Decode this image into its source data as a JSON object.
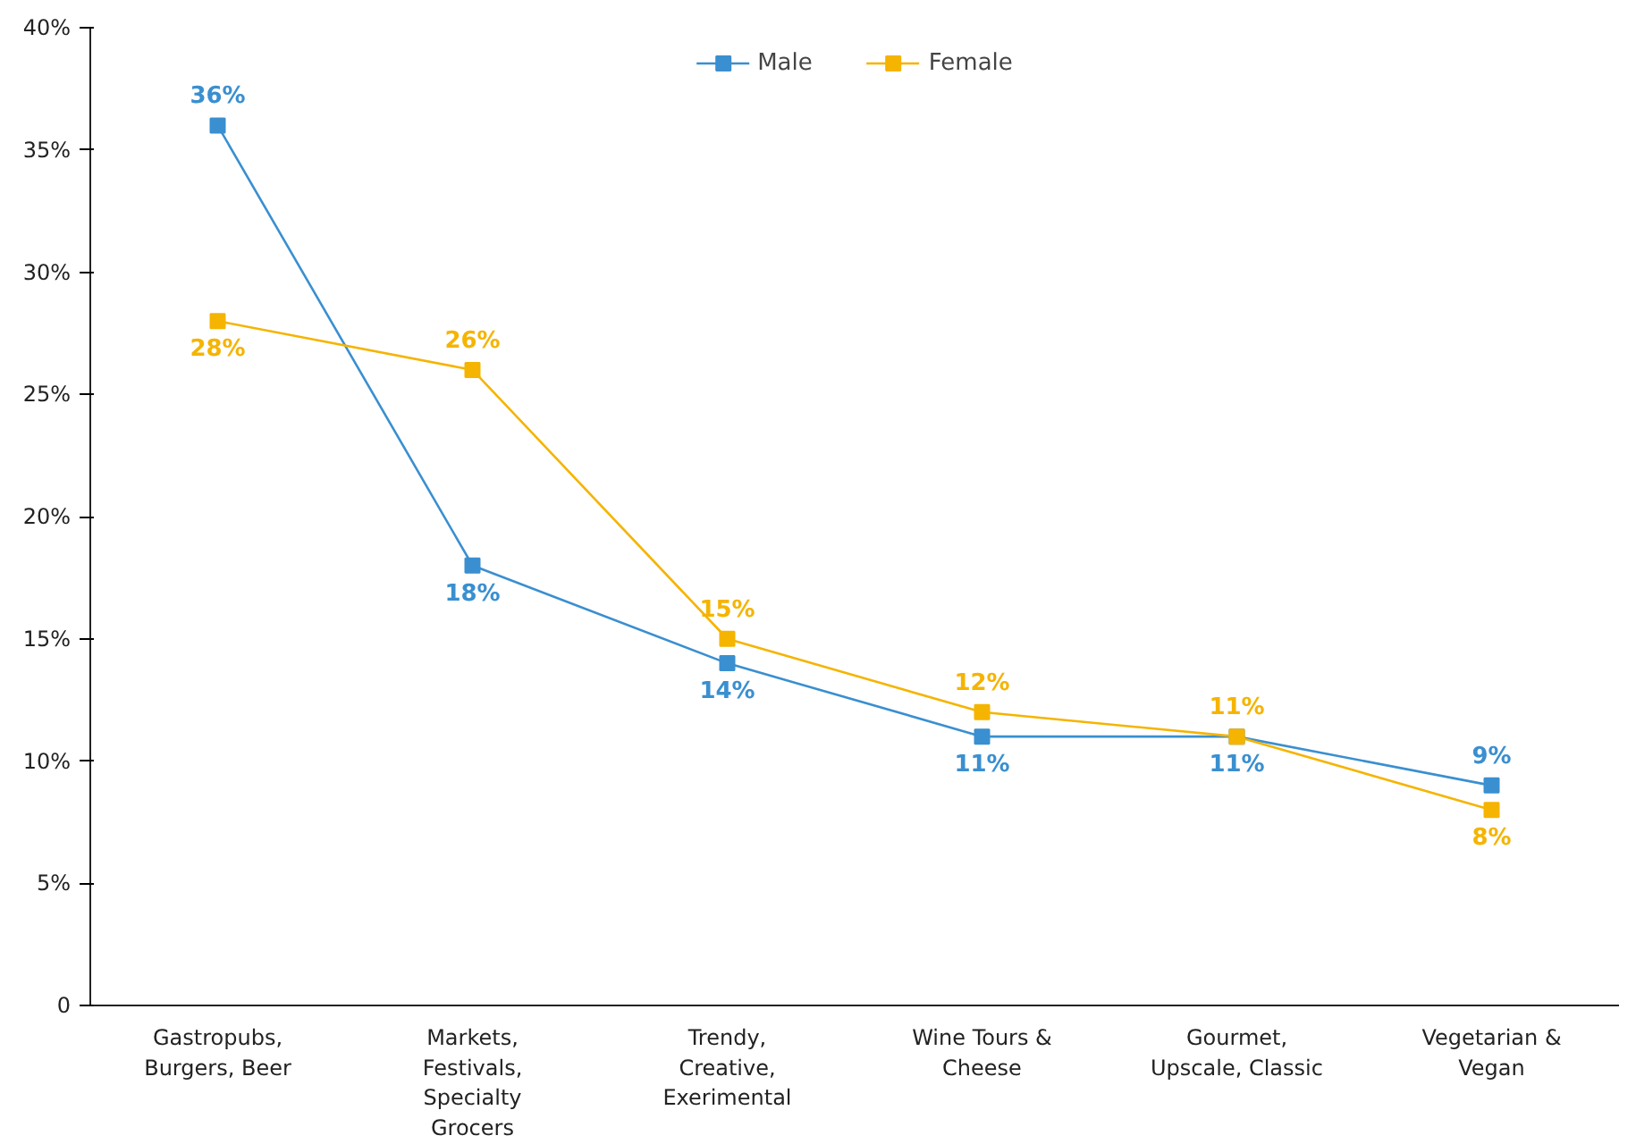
{
  "chart_data": {
    "type": "line",
    "categories": [
      "Gastropubs,\nBurgers, Beer",
      "Markets,\nFestivals,\nSpecialty\nGrocers",
      "Trendy,\nCreative,\nExerimental",
      "Wine Tours &\nCheese",
      "Gourmet,\nUpscale, Classic",
      "Vegetarian &\nVegan"
    ],
    "series": [
      {
        "name": "Male",
        "color": "#3a8fd0",
        "values": [
          36,
          18,
          14,
          11,
          11,
          9
        ],
        "value_labels": [
          "36%",
          "18%",
          "14%",
          "11%",
          "11%",
          "9%"
        ]
      },
      {
        "name": "Female",
        "color": "#f5b400",
        "values": [
          28,
          26,
          15,
          12,
          11,
          8
        ],
        "value_labels": [
          "28%",
          "26%",
          "15%",
          "12%",
          "11%",
          "8%"
        ]
      }
    ],
    "ylim": [
      0,
      40
    ],
    "yticks": [
      {
        "value": 0,
        "label": "0"
      },
      {
        "value": 5,
        "label": "5%"
      },
      {
        "value": 10,
        "label": "10%"
      },
      {
        "value": 15,
        "label": "15%"
      },
      {
        "value": 20,
        "label": "20%"
      },
      {
        "value": 25,
        "label": "25%"
      },
      {
        "value": 30,
        "label": "30%"
      },
      {
        "value": 35,
        "label": "35%"
      },
      {
        "value": 40,
        "label": "40%"
      }
    ],
    "marker": "square",
    "line_style": "solid",
    "grid": false,
    "legend": "top"
  }
}
